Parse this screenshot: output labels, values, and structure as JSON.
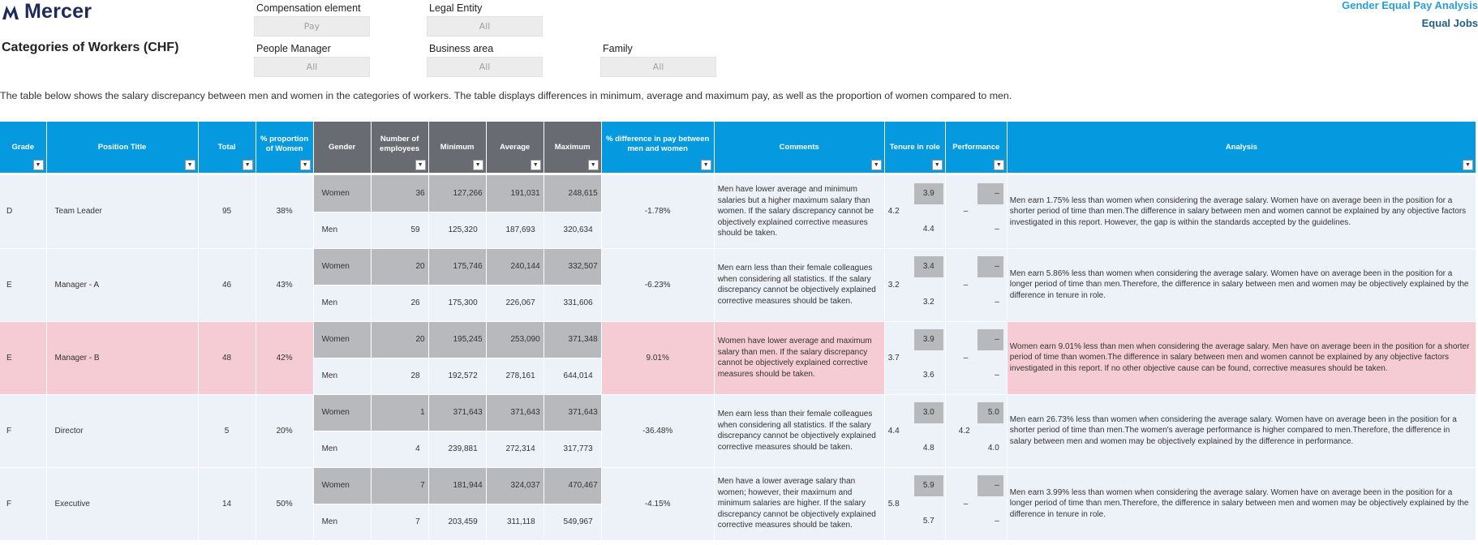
{
  "brand": {
    "name": "Mercer"
  },
  "page_title": "Categories of Workers (CHF)",
  "report": {
    "title": "Gender Equal Pay Analysis",
    "subtitle": "Equal Jobs"
  },
  "filters": {
    "compensation_element": {
      "label": "Compensation element",
      "value": "Pay"
    },
    "legal_entity": {
      "label": "Legal Entity",
      "value": "All"
    },
    "people_manager": {
      "label": "People Manager",
      "value": "All"
    },
    "business_area": {
      "label": "Business area",
      "value": "All"
    },
    "family": {
      "label": "Family",
      "value": "All"
    }
  },
  "description": "The table below shows the salary discrepancy between men and women in the categories of workers. The table displays differences in minimum, average and maximum pay, as well as the proportion of women compared to men.",
  "table": {
    "headers": {
      "grade": "Grade",
      "position": "Position Title",
      "total": "Total",
      "proportion": "% proportion of Women",
      "gender": "Gender",
      "employees": "Number of employees",
      "minimum": "Minimum",
      "average": "Average",
      "maximum": "Maximum",
      "difference": "% difference in pay between men and women",
      "comments": "Comments",
      "tenure": "Tenure in role",
      "performance": "Performance",
      "analysis": "Analysis"
    },
    "filter_glyph": "▼",
    "groups": [
      {
        "grade": "D",
        "position": "Team Leader",
        "total": "95",
        "proportion": "38%",
        "difference": "-1.78%",
        "comment": "Men have lower average and minimum salaries but a higher maximum salary than women. If the salary discrepancy cannot be objectively explained corrective measures should be taken.",
        "tenure_avg": "4.2",
        "perf_avg": "–",
        "analysis": "Men earn 1.75% less than women when considering the average salary. Women have on average been in the position for a shorter period of time than men.The difference in salary between men and women cannot be explained by any objective factors investigated in this report. However, the gap is within the standards accepted by the guidelines.",
        "women": {
          "gender": "Women",
          "employees": "36",
          "min": "127,266",
          "avg": "191,031",
          "max": "248,615",
          "tenure": "3.9",
          "perf": "–"
        },
        "men": {
          "gender": "Men",
          "employees": "59",
          "min": "125,320",
          "avg": "187,693",
          "max": "320,634",
          "tenure": "4.4",
          "perf": "–"
        }
      },
      {
        "grade": "E",
        "position": "Manager - A",
        "total": "46",
        "proportion": "43%",
        "difference": "-6.23%",
        "comment": "Men earn less than their female colleagues when considering all statistics. If the salary discrepancy cannot be objectively explained corrective measures should be taken.",
        "tenure_avg": "3.2",
        "perf_avg": "–",
        "analysis": "Men earn 5.86% less than women when considering the average salary. Women have on average been in the position for a longer period of time than men.Therefore, the difference in salary between men and women may be objectively explained by the difference in tenure in role.",
        "women": {
          "gender": "Women",
          "employees": "20",
          "min": "175,746",
          "avg": "240,144",
          "max": "332,507",
          "tenure": "3.4",
          "perf": "–"
        },
        "men": {
          "gender": "Men",
          "employees": "26",
          "min": "175,300",
          "avg": "226,067",
          "max": "331,606",
          "tenure": "3.2",
          "perf": "–"
        }
      },
      {
        "grade": "E",
        "position": "Manager - B",
        "total": "48",
        "proportion": "42%",
        "difference": "9.01%",
        "comment": "Women have lower average and maximum salary than men. If the salary discrepancy cannot be objectively explained corrective measures should be taken.",
        "tenure_avg": "3.7",
        "perf_avg": "–",
        "analysis": "Women earn 9.01% less than men when considering the average salary. Men have on average been in the position for a shorter period of time than women.The difference in salary between men and women cannot be explained by any objective factors investigated in this report. If no other objective cause can be found, corrective measures should be taken.",
        "women": {
          "gender": "Women",
          "employees": "20",
          "min": "195,245",
          "avg": "253,090",
          "max": "371,348",
          "tenure": "3.9",
          "perf": "–"
        },
        "men": {
          "gender": "Men",
          "employees": "28",
          "min": "192,572",
          "avg": "278,161",
          "max": "644,014",
          "tenure": "3.6",
          "perf": "–"
        }
      },
      {
        "grade": "F",
        "position": "Director",
        "total": "5",
        "proportion": "20%",
        "difference": "-36.48%",
        "comment": "Men earn less than their female colleagues when considering all statistics. If the salary discrepancy cannot be objectively explained corrective measures should be taken.",
        "tenure_avg": "4.4",
        "perf_avg": "4.2",
        "analysis": "Men earn 26.73% less than women when considering the average salary. Women have on average been in the position for a shorter period of time than men.The women's average performance is higher compared to men.Therefore, the difference in salary between men and women may be objectively explained by the difference in performance.",
        "women": {
          "gender": "Women",
          "employees": "1",
          "min": "371,643",
          "avg": "371,643",
          "max": "371,643",
          "tenure": "3.0",
          "perf": "5.0"
        },
        "men": {
          "gender": "Men",
          "employees": "4",
          "min": "239,881",
          "avg": "272,314",
          "max": "317,773",
          "tenure": "4.8",
          "perf": "4.0"
        }
      },
      {
        "grade": "F",
        "position": "Executive",
        "total": "14",
        "proportion": "50%",
        "difference": "-4.15%",
        "comment": "Men have a lower average salary than women; however, their maximum and minimum salaries are higher. If the salary discrepancy cannot be objectively explained corrective measures should be taken.",
        "tenure_avg": "5.8",
        "perf_avg": "–",
        "analysis": "Men earn 3.99% less than women when considering the average salary. Women have on average been in the position for a longer period of time than men.Therefore, the difference in salary between men and women may be objectively explained by the difference in tenure in role.",
        "women": {
          "gender": "Women",
          "employees": "7",
          "min": "181,944",
          "avg": "324,037",
          "max": "470,467",
          "tenure": "5.9",
          "perf": "–"
        },
        "men": {
          "gender": "Men",
          "employees": "7",
          "min": "203,459",
          "avg": "311,118",
          "max": "549,967",
          "tenure": "5.7",
          "perf": "–"
        }
      }
    ]
  },
  "colors": {
    "header_blue": "#059ae0",
    "header_gray": "#686c72",
    "row_normal": "#edf2f8",
    "row_highlight": "#f5ccd3",
    "gray_cell": "#b7b9bc",
    "brand_navy": "#1e2a5e"
  }
}
